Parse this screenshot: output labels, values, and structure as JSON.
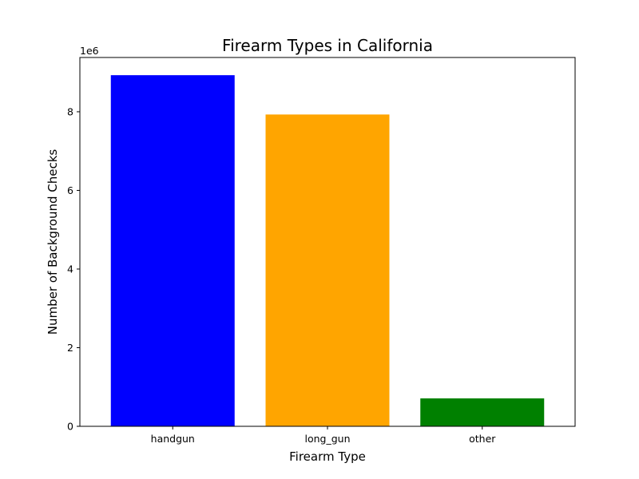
{
  "chart_data": {
    "type": "bar",
    "title": "Firearm Types in California",
    "xlabel": "Firearm Type",
    "ylabel": "Number of Background Checks",
    "y_offset_label": "1e6",
    "categories": [
      "handgun",
      "long_gun",
      "other"
    ],
    "values": [
      8930000,
      7930000,
      710000
    ],
    "colors": [
      "#0000ff",
      "#ffa500",
      "#008000"
    ],
    "ylim": [
      0,
      9380000
    ],
    "y_ticks": [
      0,
      2000000,
      4000000,
      6000000,
      8000000
    ],
    "y_tick_labels": [
      "0",
      "2",
      "4",
      "6",
      "8"
    ],
    "grid": false,
    "legend": "none"
  }
}
